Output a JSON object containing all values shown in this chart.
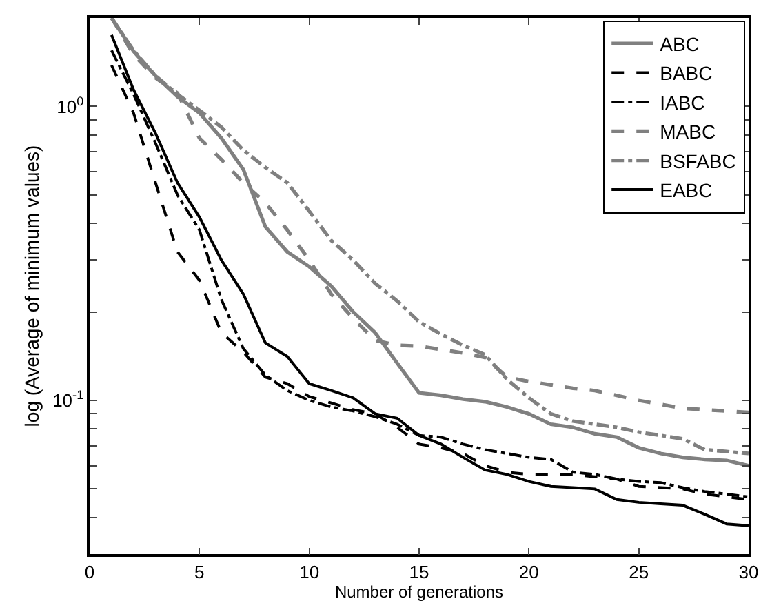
{
  "chart_data": {
    "type": "line",
    "xlabel": "Number of generations",
    "ylabel": "log (Average of minimum values)",
    "x": [
      1,
      2,
      3,
      4,
      5,
      6,
      7,
      8,
      9,
      10,
      11,
      12,
      13,
      14,
      15,
      16,
      17,
      18,
      19,
      20,
      21,
      22,
      23,
      24,
      25,
      26,
      27,
      28,
      29,
      30
    ],
    "log": "y",
    "xlim": [
      0,
      30
    ],
    "xticks": [
      0,
      5,
      10,
      15,
      20,
      25,
      30
    ],
    "ylim": [
      0.03,
      2
    ],
    "yticks": [
      {
        "value": 0.03,
        "label": null
      },
      {
        "value": 0.04,
        "label": null
      },
      {
        "value": 0.05,
        "label": null
      },
      {
        "value": 0.06,
        "label": null
      },
      {
        "value": 0.07,
        "label": null
      },
      {
        "value": 0.08,
        "label": null
      },
      {
        "value": 0.09,
        "label": null
      },
      {
        "value": 0.1,
        "label": "10$^{-1}$"
      },
      {
        "value": 0.2,
        "label": null
      },
      {
        "value": 0.3,
        "label": null
      },
      {
        "value": 0.4,
        "label": null
      },
      {
        "value": 0.5,
        "label": null
      },
      {
        "value": 0.6,
        "label": null
      },
      {
        "value": 0.7,
        "label": null
      },
      {
        "value": 0.8,
        "label": null
      },
      {
        "value": 0.9,
        "label": null
      },
      {
        "value": 1,
        "label": "10$^{0}$"
      },
      {
        "value": 2,
        "label": null
      }
    ],
    "grid": false,
    "legend": "top right",
    "marker": "none",
    "series": [
      {
        "name": "ABC",
        "color": "#808080",
        "line_style": "solid",
        "values": [
          2.0,
          1.54,
          1.27,
          1.08,
          0.95,
          0.78,
          0.61,
          0.39,
          0.32,
          0.285,
          0.245,
          0.2,
          0.17,
          0.134,
          0.106,
          0.104,
          0.101,
          0.099,
          0.095,
          0.09,
          0.083,
          0.081,
          0.077,
          0.075,
          0.069,
          0.066,
          0.064,
          0.063,
          0.0625,
          0.06
        ]
      },
      {
        "name": "BABC",
        "color": "#000000",
        "line_style": "dashed",
        "values": [
          1.38,
          0.95,
          0.55,
          0.32,
          0.256,
          0.17,
          0.146,
          0.12,
          0.114,
          0.103,
          0.098,
          0.093,
          0.09,
          0.081,
          0.071,
          0.069,
          0.066,
          0.06,
          0.057,
          0.056,
          0.056,
          0.056,
          0.055,
          0.054,
          0.051,
          0.0505,
          0.05,
          0.048,
          0.047,
          0.046
        ]
      },
      {
        "name": "IABC",
        "color": "#000000",
        "line_style": "dashdot",
        "values": [
          1.55,
          1.1,
          0.75,
          0.5,
          0.38,
          0.22,
          0.15,
          0.122,
          0.108,
          0.1,
          0.095,
          0.092,
          0.088,
          0.083,
          0.076,
          0.075,
          0.071,
          0.068,
          0.066,
          0.064,
          0.063,
          0.057,
          0.056,
          0.054,
          0.053,
          0.0525,
          0.0505,
          0.049,
          0.048,
          0.047
        ]
      },
      {
        "name": "MABC",
        "color": "#808080",
        "line_style": "dashed",
        "values": [
          2.0,
          1.5,
          1.25,
          1.11,
          0.78,
          0.66,
          0.55,
          0.47,
          0.38,
          0.3,
          0.23,
          0.19,
          0.16,
          0.154,
          0.153,
          0.149,
          0.145,
          0.14,
          0.12,
          0.116,
          0.113,
          0.11,
          0.108,
          0.104,
          0.1,
          0.097,
          0.094,
          0.093,
          0.092,
          0.091
        ]
      },
      {
        "name": "BSFABC",
        "color": "#808080",
        "line_style": "dashdot",
        "values": [
          2.0,
          1.55,
          1.27,
          1.1,
          0.97,
          0.85,
          0.71,
          0.62,
          0.55,
          0.44,
          0.35,
          0.3,
          0.25,
          0.218,
          0.185,
          0.168,
          0.154,
          0.143,
          0.118,
          0.102,
          0.09,
          0.085,
          0.083,
          0.081,
          0.078,
          0.076,
          0.074,
          0.068,
          0.067,
          0.066
        ]
      },
      {
        "name": "EABC",
        "color": "#000000",
        "line_style": "solid",
        "values": [
          1.75,
          1.14,
          0.81,
          0.55,
          0.42,
          0.3,
          0.23,
          0.157,
          0.141,
          0.114,
          0.108,
          0.102,
          0.09,
          0.087,
          0.076,
          0.071,
          0.064,
          0.058,
          0.056,
          0.053,
          0.051,
          0.0505,
          0.05,
          0.046,
          0.045,
          0.0445,
          0.044,
          0.041,
          0.038,
          0.0375
        ]
      }
    ]
  }
}
